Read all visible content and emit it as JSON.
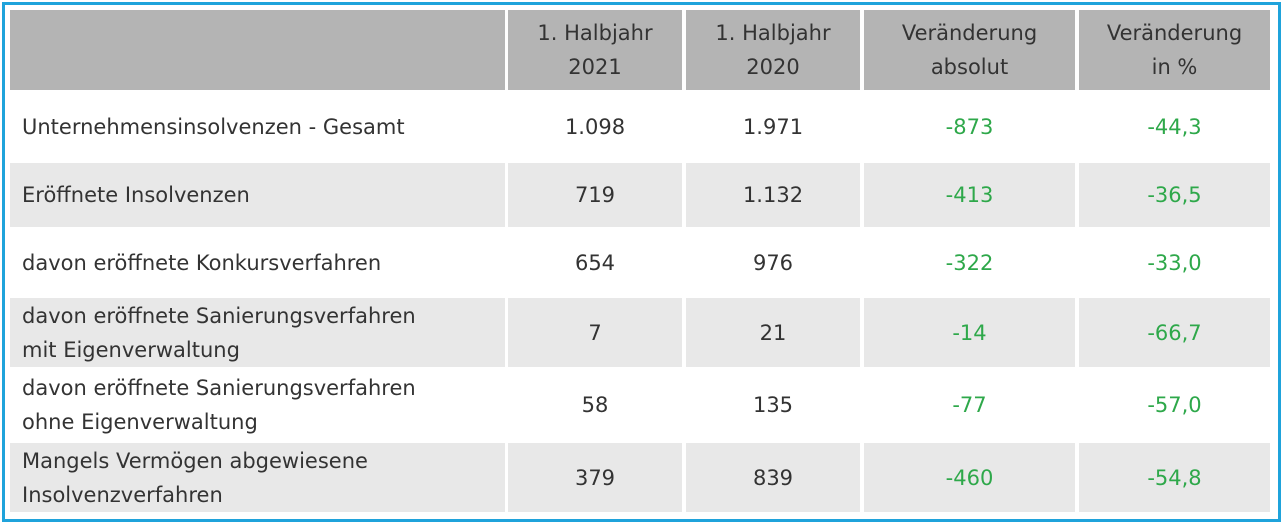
{
  "table": {
    "header": [
      [],
      [
        "1. Halbjahr",
        "2021"
      ],
      [
        "1. Halbjahr",
        "2020"
      ],
      [
        "Veränderung",
        "absolut"
      ],
      [
        "Veränderung",
        "in %"
      ]
    ],
    "rows": [
      [
        [
          "Unternehmensinsolvenzen - Gesamt"
        ],
        "1.098",
        "1.971",
        "-873",
        "-44,3"
      ],
      [
        [
          "Eröffnete Insolvenzen"
        ],
        "719",
        "1.132",
        "-413",
        "-36,5"
      ],
      [
        [
          "davon eröffnete Konkursverfahren"
        ],
        "654",
        "976",
        "-322",
        "-33,0"
      ],
      [
        [
          "davon eröffnete Sanierungsverfahren",
          "mit Eigenverwaltung"
        ],
        "7",
        "21",
        "-14",
        "-66,7"
      ],
      [
        [
          "davon eröffnete Sanierungsverfahren",
          "ohne Eigenverwaltung"
        ],
        "58",
        "135",
        "-77",
        "-57,0"
      ],
      [
        [
          "Mangels Vermögen abgewiesene",
          "Insolvenzverfahren"
        ],
        "379",
        "839",
        "-460",
        "-54,8"
      ]
    ]
  }
}
